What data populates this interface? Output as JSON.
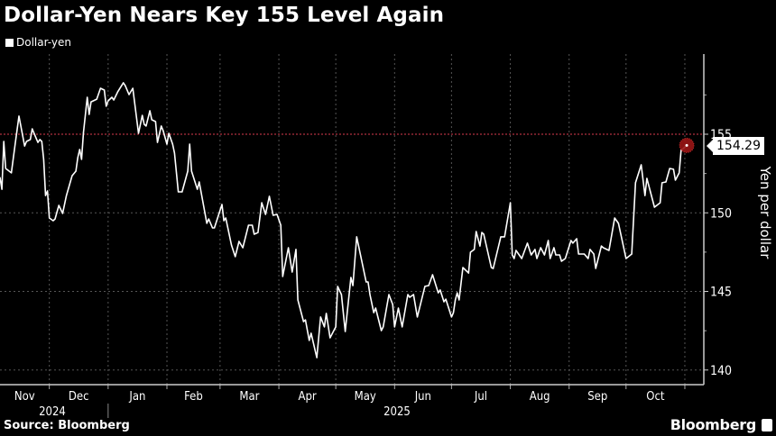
{
  "title": "Dollar-Yen Nears Key 155 Level Again",
  "legend": "Dollar-yen",
  "source": "Source: Bloomberg",
  "brand": "Bloomberg",
  "colors": {
    "background": "#000000",
    "line": "#ffffff",
    "reference_line": "#b0303f",
    "end_marker": "#9a1515",
    "grid": "#555555"
  },
  "chart_data": {
    "type": "line",
    "title": "Dollar-Yen Nears Key 155 Level Again",
    "ylabel": "Yen per dollar",
    "xlabel": "",
    "ylim": [
      139,
      160
    ],
    "xlim": [
      "2024-11-05",
      "2025-11-11"
    ],
    "y_axis_side": "right",
    "yticks": [
      140,
      145,
      150,
      155
    ],
    "xtick_labels": [
      "Nov",
      "Dec",
      "Jan",
      "Feb",
      "Mar",
      "Apr",
      "May",
      "Jun",
      "Jul",
      "Aug",
      "Sep",
      "Oct"
    ],
    "year_labels": [
      "2024",
      "2025"
    ],
    "grid": true,
    "reference_line": {
      "value": 155,
      "style": "dotted",
      "color": "#b0303f"
    },
    "end_label": "154.29",
    "series": [
      {
        "name": "Dollar-yen",
        "points": [
          [
            "2024-11-05",
            152.25
          ],
          [
            "2024-11-06",
            151.5
          ],
          [
            "2024-11-07",
            154.54
          ],
          [
            "2024-11-08",
            152.82
          ],
          [
            "2024-11-11",
            152.54
          ],
          [
            "2024-11-13",
            154.37
          ],
          [
            "2024-11-15",
            156.15
          ],
          [
            "2024-11-18",
            154.25
          ],
          [
            "2024-11-19",
            154.54
          ],
          [
            "2024-11-21",
            154.66
          ],
          [
            "2024-11-22",
            155.34
          ],
          [
            "2024-11-25",
            154.48
          ],
          [
            "2024-11-26",
            154.66
          ],
          [
            "2024-11-27",
            154.54
          ],
          [
            "2024-11-28",
            153.4
          ],
          [
            "2024-11-29",
            151.1
          ],
          [
            "2024-11-30",
            151.39
          ],
          [
            "2024-12-01",
            149.67
          ],
          [
            "2024-12-03",
            149.5
          ],
          [
            "2024-12-04",
            149.61
          ],
          [
            "2024-12-06",
            150.47
          ],
          [
            "2024-12-08",
            149.96
          ],
          [
            "2024-12-10",
            151.1
          ],
          [
            "2024-12-13",
            152.36
          ],
          [
            "2024-12-15",
            152.65
          ],
          [
            "2024-12-16",
            153.51
          ],
          [
            "2024-12-17",
            154.03
          ],
          [
            "2024-12-18",
            153.4
          ],
          [
            "2024-12-19",
            155.11
          ],
          [
            "2024-12-21",
            157.35
          ],
          [
            "2024-12-22",
            156.26
          ],
          [
            "2024-12-23",
            157.06
          ],
          [
            "2024-12-26",
            157.23
          ],
          [
            "2024-12-28",
            157.92
          ],
          [
            "2024-12-30",
            157.81
          ],
          [
            "2024-12-31",
            156.78
          ],
          [
            "2025-01-01",
            157.12
          ],
          [
            "2025-01-03",
            157.35
          ],
          [
            "2025-01-04",
            157.18
          ],
          [
            "2025-01-06",
            157.69
          ],
          [
            "2025-01-09",
            158.27
          ],
          [
            "2025-01-10",
            158.09
          ],
          [
            "2025-01-12",
            157.52
          ],
          [
            "2025-01-14",
            157.92
          ],
          [
            "2025-01-17",
            155.06
          ],
          [
            "2025-01-19",
            156.2
          ],
          [
            "2025-01-20",
            155.63
          ],
          [
            "2025-01-21",
            155.52
          ],
          [
            "2025-01-23",
            156.49
          ],
          [
            "2025-01-24",
            155.92
          ],
          [
            "2025-01-26",
            155.8
          ],
          [
            "2025-01-27",
            154.48
          ],
          [
            "2025-01-29",
            155.52
          ],
          [
            "2025-01-30",
            155.23
          ],
          [
            "2025-02-01",
            154.37
          ],
          [
            "2025-02-02",
            155.06
          ],
          [
            "2025-02-04",
            154.37
          ],
          [
            "2025-02-05",
            153.8
          ],
          [
            "2025-02-07",
            151.33
          ],
          [
            "2025-02-09",
            151.33
          ],
          [
            "2025-02-12",
            152.65
          ],
          [
            "2025-02-13",
            154.37
          ],
          [
            "2025-02-14",
            152.65
          ],
          [
            "2025-02-17",
            151.5
          ],
          [
            "2025-02-18",
            151.96
          ],
          [
            "2025-02-22",
            149.33
          ],
          [
            "2025-02-23",
            149.61
          ],
          [
            "2025-02-25",
            149.04
          ],
          [
            "2025-02-26",
            149.04
          ],
          [
            "2025-03-02",
            150.53
          ],
          [
            "2025-03-03",
            149.5
          ],
          [
            "2025-03-04",
            149.67
          ],
          [
            "2025-03-07",
            147.95
          ],
          [
            "2025-03-09",
            147.21
          ],
          [
            "2025-03-11",
            148.18
          ],
          [
            "2025-03-13",
            147.78
          ],
          [
            "2025-03-16",
            149.21
          ],
          [
            "2025-03-18",
            149.21
          ],
          [
            "2025-03-19",
            148.64
          ],
          [
            "2025-03-21",
            148.75
          ],
          [
            "2025-03-23",
            150.64
          ],
          [
            "2025-03-25",
            149.9
          ],
          [
            "2025-03-27",
            151.05
          ],
          [
            "2025-03-29",
            149.84
          ],
          [
            "2025-03-31",
            149.9
          ],
          [
            "2025-04-02",
            149.21
          ],
          [
            "2025-04-03",
            145.95
          ],
          [
            "2025-04-06",
            147.78
          ],
          [
            "2025-04-08",
            146.23
          ],
          [
            "2025-04-10",
            147.67
          ],
          [
            "2025-04-11",
            144.46
          ],
          [
            "2025-04-14",
            143.08
          ],
          [
            "2025-04-15",
            143.19
          ],
          [
            "2025-04-17",
            141.88
          ],
          [
            "2025-04-18",
            142.34
          ],
          [
            "2025-04-21",
            140.79
          ],
          [
            "2025-04-23",
            143.37
          ],
          [
            "2025-04-25",
            142.74
          ],
          [
            "2025-04-26",
            143.6
          ],
          [
            "2025-04-28",
            142.05
          ],
          [
            "2025-05-01",
            142.74
          ],
          [
            "2025-05-02",
            145.32
          ],
          [
            "2025-05-04",
            144.8
          ],
          [
            "2025-05-06",
            142.45
          ],
          [
            "2025-05-09",
            145.89
          ],
          [
            "2025-05-10",
            145.37
          ],
          [
            "2025-05-12",
            148.47
          ],
          [
            "2025-05-17",
            145.6
          ],
          [
            "2025-05-18",
            145.6
          ],
          [
            "2025-05-19",
            144.8
          ],
          [
            "2025-05-21",
            143.65
          ],
          [
            "2025-05-22",
            143.94
          ],
          [
            "2025-05-25",
            142.51
          ],
          [
            "2025-05-26",
            142.74
          ],
          [
            "2025-05-29",
            144.8
          ],
          [
            "2025-05-31",
            144.17
          ],
          [
            "2025-06-01",
            142.74
          ],
          [
            "2025-06-03",
            143.94
          ],
          [
            "2025-06-05",
            142.74
          ],
          [
            "2025-06-08",
            144.8
          ],
          [
            "2025-06-09",
            144.63
          ],
          [
            "2025-06-11",
            144.8
          ],
          [
            "2025-06-13",
            143.37
          ],
          [
            "2025-06-17",
            145.32
          ],
          [
            "2025-06-19",
            145.37
          ],
          [
            "2025-06-21",
            146.06
          ],
          [
            "2025-06-24",
            144.91
          ],
          [
            "2025-06-25",
            145.09
          ],
          [
            "2025-06-27",
            144.34
          ],
          [
            "2025-06-28",
            144.51
          ],
          [
            "2025-07-01",
            143.37
          ],
          [
            "2025-07-02",
            143.65
          ],
          [
            "2025-07-03",
            144.46
          ],
          [
            "2025-07-04",
            144.91
          ],
          [
            "2025-07-05",
            144.46
          ],
          [
            "2025-07-07",
            146.52
          ],
          [
            "2025-07-10",
            146.17
          ],
          [
            "2025-07-11",
            147.49
          ],
          [
            "2025-07-13",
            147.67
          ],
          [
            "2025-07-14",
            148.81
          ],
          [
            "2025-07-16",
            147.89
          ],
          [
            "2025-07-17",
            148.75
          ],
          [
            "2025-07-18",
            148.64
          ],
          [
            "2025-07-22",
            146.52
          ],
          [
            "2025-07-23",
            146.46
          ],
          [
            "2025-07-27",
            148.47
          ],
          [
            "2025-07-29",
            148.47
          ],
          [
            "2025-08-01",
            150.64
          ],
          [
            "2025-08-02",
            147.32
          ],
          [
            "2025-08-03",
            147.09
          ],
          [
            "2025-08-04",
            147.61
          ],
          [
            "2025-08-07",
            147.09
          ],
          [
            "2025-08-10",
            148.07
          ],
          [
            "2025-08-12",
            147.32
          ],
          [
            "2025-08-14",
            147.67
          ],
          [
            "2025-08-15",
            147.09
          ],
          [
            "2025-08-17",
            147.78
          ],
          [
            "2025-08-19",
            147.32
          ],
          [
            "2025-08-21",
            148.24
          ],
          [
            "2025-08-22",
            147.09
          ],
          [
            "2025-08-24",
            147.78
          ],
          [
            "2025-08-25",
            147.32
          ],
          [
            "2025-08-27",
            147.32
          ],
          [
            "2025-08-28",
            146.92
          ],
          [
            "2025-08-30",
            147.09
          ],
          [
            "2025-09-02",
            148.24
          ],
          [
            "2025-09-03",
            148.07
          ],
          [
            "2025-09-05",
            148.35
          ],
          [
            "2025-09-06",
            147.38
          ],
          [
            "2025-09-09",
            147.38
          ],
          [
            "2025-09-11",
            147.09
          ],
          [
            "2025-09-12",
            147.67
          ],
          [
            "2025-09-14",
            147.38
          ],
          [
            "2025-09-15",
            146.46
          ],
          [
            "2025-09-18",
            147.89
          ],
          [
            "2025-09-19",
            147.78
          ],
          [
            "2025-09-22",
            147.61
          ],
          [
            "2025-09-25",
            149.67
          ],
          [
            "2025-09-27",
            149.33
          ],
          [
            "2025-10-01",
            147.09
          ],
          [
            "2025-10-04",
            147.38
          ],
          [
            "2025-10-06",
            151.91
          ],
          [
            "2025-10-09",
            153.05
          ],
          [
            "2025-10-11",
            151.1
          ],
          [
            "2025-10-12",
            152.19
          ],
          [
            "2025-10-16",
            150.36
          ],
          [
            "2025-10-19",
            150.64
          ],
          [
            "2025-10-20",
            151.91
          ],
          [
            "2025-10-22",
            151.96
          ],
          [
            "2025-10-24",
            152.82
          ],
          [
            "2025-10-26",
            152.77
          ],
          [
            "2025-10-27",
            152.08
          ],
          [
            "2025-10-29",
            152.54
          ],
          [
            "2025-10-30",
            153.97
          ],
          [
            "2025-11-02",
            154.29
          ]
        ]
      }
    ]
  }
}
